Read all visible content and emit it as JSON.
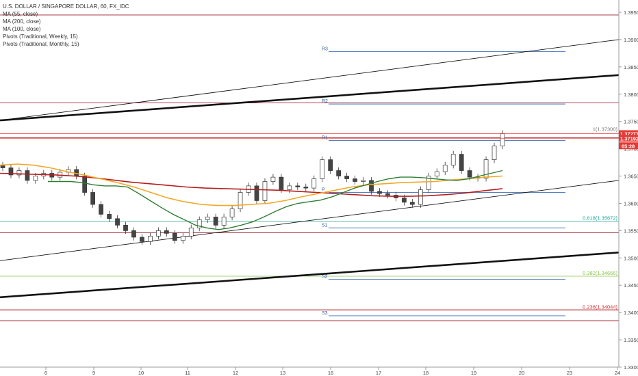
{
  "legend": {
    "title": "U.S. DOLLAR / SINGAPORE DOLLAR, 60, FX_IDC",
    "ma55": "MA (55, close)",
    "ma200": "MA (200, close)",
    "ma100": "MA (100, close)",
    "pivots_weekly": "Pivots (Traditional, Weekly, 15)",
    "pivots_monthly": "Pivots (Traditional, Monthly, 15)"
  },
  "price_tags": {
    "last": "1.37277",
    "second": "1.37192",
    "countdown": "05:28",
    "last_color": "#e53935",
    "second_color": "#e53935"
  },
  "colors": {
    "ma55": "#2e7d32",
    "ma100": "#f5a623",
    "ma200": "#b71c1c",
    "monthly_pivot": "#9c1c2c",
    "weekly_pivot": "#3d6fb6",
    "fib_618": "#26a69a",
    "fib_382": "#8bc34a",
    "fib_236": "#d32f2f",
    "candle_up": "#ffffff",
    "candle_down": "#444444"
  },
  "chart_data": {
    "type": "candlestick",
    "x_tick_labels": [
      "6",
      "9",
      "10",
      "11",
      "12",
      "13",
      "16",
      "17",
      "18",
      "19",
      "20",
      "23",
      "24"
    ],
    "y_tick_labels": [
      "1.39500",
      "1.39000",
      "1.38500",
      "1.38000",
      "1.37500",
      "1.37000",
      "1.36500",
      "1.36000",
      "1.35500",
      "1.35000",
      "1.34500",
      "1.34000",
      "1.33500",
      "1.33000"
    ],
    "ylim": [
      1.33,
      1.3965
    ],
    "weekly_pivots": [
      {
        "label": "R3",
        "value": 1.3878
      },
      {
        "label": "R2",
        "value": 1.3782
      },
      {
        "label": "R1",
        "value": 1.3715
      },
      {
        "label": "P",
        "value": 1.362
      },
      {
        "label": "S1",
        "value": 1.3555
      },
      {
        "label": "S2",
        "value": 1.3461
      },
      {
        "label": "S3",
        "value": 1.3394
      }
    ],
    "monthly_pivot_levels": [
      1.3945,
      1.3784,
      1.372,
      1.3546,
      1.3405,
      1.3385
    ],
    "fib_levels": [
      {
        "label": "0.618(1.35672)",
        "value": 1.35672
      },
      {
        "label": "0.382(1.34666)",
        "value": 1.34666
      },
      {
        "label": "0.236(1.34044)",
        "value": 1.34044
      },
      {
        "label": "1(1.37300)",
        "value": 1.373
      }
    ],
    "trendlines": [
      {
        "name": "upper-channel-thin",
        "from": [
          0,
          1.3752
        ],
        "to": [
          60,
          1.39
        ]
      },
      {
        "name": "upper-channel-thick",
        "from": [
          0,
          1.3752
        ],
        "to": [
          60,
          1.3835
        ]
      },
      {
        "name": "lower-channel-thin",
        "from": [
          0,
          1.3495
        ],
        "to": [
          60,
          1.3642
        ]
      },
      {
        "name": "lower-channel-thick",
        "from": [
          0,
          1.3428
        ],
        "to": [
          60,
          1.351
        ]
      }
    ],
    "closes": [
      1.3665,
      1.3652,
      1.366,
      1.3642,
      1.365,
      1.3655,
      1.3648,
      1.3657,
      1.3662,
      1.365,
      1.362,
      1.3598,
      1.358,
      1.3572,
      1.356,
      1.355,
      1.3538,
      1.353,
      1.354,
      1.355,
      1.3545,
      1.3532,
      1.354,
      1.3555,
      1.357,
      1.3575,
      1.356,
      1.3575,
      1.359,
      1.362,
      1.3632,
      1.3605,
      1.364,
      1.3648,
      1.3625,
      1.3632,
      1.363,
      1.3628,
      1.3645,
      1.368,
      1.366,
      1.365,
      1.3645,
      1.364,
      1.3642,
      1.3622,
      1.3618,
      1.3615,
      1.361,
      1.3602,
      1.3598,
      1.3625,
      1.365,
      1.3658,
      1.367,
      1.369,
      1.366,
      1.3648,
      1.3646,
      1.368,
      1.3705,
      1.3728
    ],
    "ma55": [
      1.364,
      1.364,
      1.364,
      1.3638,
      1.3634,
      1.3632,
      1.3632,
      1.363,
      1.3618,
      1.3605,
      1.3592,
      1.358,
      1.357,
      1.356,
      1.3555,
      1.3552,
      1.3555,
      1.356,
      1.3566,
      1.3575,
      1.3585,
      1.3594,
      1.36,
      1.3603,
      1.3606,
      1.3612,
      1.362,
      1.3628,
      1.3634,
      1.364,
      1.3645,
      1.3648,
      1.3648,
      1.3647,
      1.3645,
      1.3643,
      1.3642,
      1.3645,
      1.365,
      1.3655,
      1.366
    ],
    "ma100": [
      1.367,
      1.3672,
      1.367,
      1.3665,
      1.3658,
      1.3652,
      1.3645,
      1.3638,
      1.363,
      1.362,
      1.361,
      1.3603,
      1.3598,
      1.3596,
      1.3596,
      1.3598,
      1.36,
      1.3605,
      1.3612,
      1.3618,
      1.3624,
      1.363,
      1.3634,
      1.3636,
      1.3638,
      1.3639,
      1.364,
      1.3643,
      1.3645,
      1.3648,
      1.365
    ],
    "ma200": [
      1.3655,
      1.3654,
      1.3653,
      1.3652,
      1.365,
      1.3647,
      1.3643,
      1.3639,
      1.3636,
      1.3633,
      1.363,
      1.3628,
      1.3627,
      1.3626,
      1.3625,
      1.3624,
      1.3622,
      1.362,
      1.3618,
      1.3616,
      1.3614,
      1.3613,
      1.3613,
      1.3614,
      1.3616,
      1.3619,
      1.3623,
      1.3627
    ]
  }
}
